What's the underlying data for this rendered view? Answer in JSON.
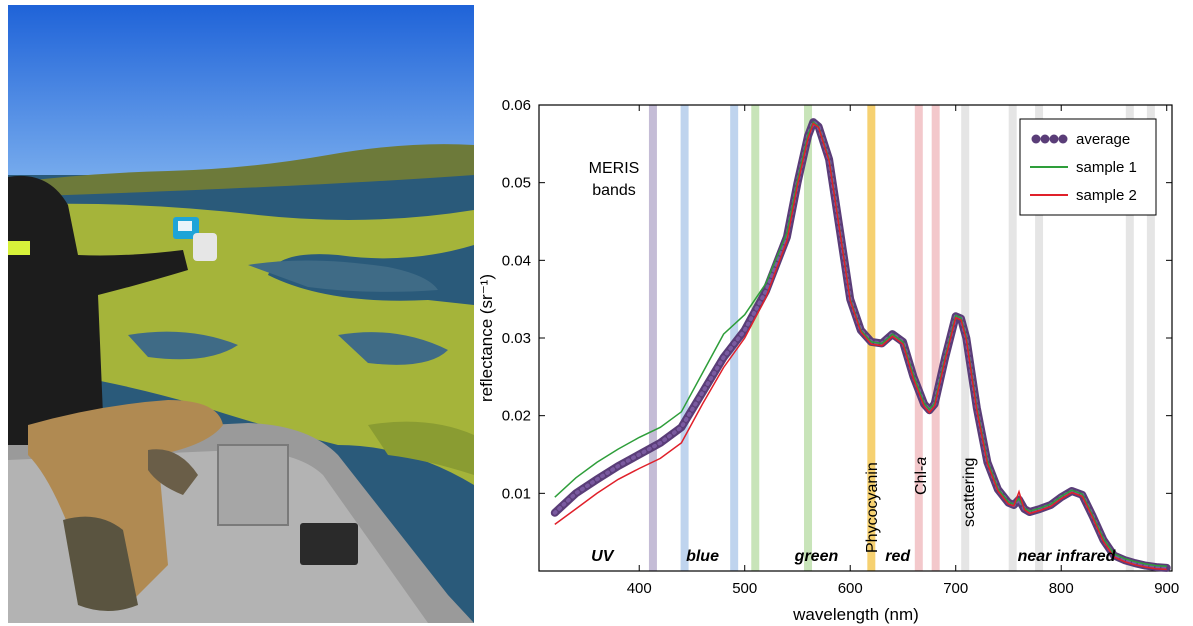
{
  "chart_data": {
    "type": "line",
    "xlabel": "wavelength (nm)",
    "ylabel": "reflectance (sr⁻¹)",
    "xlim": [
      305,
      905
    ],
    "ylim": [
      0,
      0.06
    ],
    "x_ticks": [
      400,
      500,
      600,
      700,
      800,
      900
    ],
    "y_ticks": [
      0.01,
      0.02,
      0.03,
      0.04,
      0.05,
      0.06
    ],
    "y_tick_labels": [
      "0.01",
      "0.02",
      "0.03",
      "0.04",
      "0.05",
      "0.06"
    ],
    "grid": false,
    "legend_position": "top-right",
    "series": [
      {
        "name": "average",
        "color": "#5a3d78",
        "style": "dotted-thick",
        "x": [
          320,
          340,
          360,
          380,
          400,
          420,
          440,
          460,
          480,
          500,
          520,
          540,
          550,
          560,
          565,
          570,
          580,
          590,
          600,
          610,
          620,
          630,
          640,
          650,
          660,
          670,
          675,
          680,
          690,
          700,
          705,
          710,
          720,
          730,
          740,
          750,
          755,
          760,
          765,
          770,
          780,
          790,
          800,
          810,
          820,
          830,
          840,
          850,
          860,
          870,
          880,
          890,
          900
        ],
        "y": [
          0.0075,
          0.01,
          0.0118,
          0.0135,
          0.015,
          0.0165,
          0.0185,
          0.023,
          0.0275,
          0.031,
          0.036,
          0.043,
          0.05,
          0.056,
          0.0578,
          0.0572,
          0.053,
          0.044,
          0.035,
          0.031,
          0.0295,
          0.0293,
          0.0305,
          0.0295,
          0.025,
          0.0215,
          0.0207,
          0.0215,
          0.0275,
          0.0328,
          0.0325,
          0.03,
          0.021,
          0.014,
          0.0105,
          0.0088,
          0.0085,
          0.0092,
          0.008,
          0.0076,
          0.008,
          0.0085,
          0.0095,
          0.0103,
          0.0098,
          0.007,
          0.004,
          0.002,
          0.0014,
          0.001,
          0.0007,
          0.0005,
          0.0004
        ]
      },
      {
        "name": "sample 1",
        "color": "#2e9e3a",
        "style": "line",
        "x": [
          320,
          340,
          360,
          380,
          400,
          420,
          440,
          460,
          480,
          500,
          520,
          540,
          550,
          560,
          565,
          570,
          580,
          590,
          600,
          610,
          620,
          630,
          640,
          650,
          660,
          670,
          675,
          680,
          690,
          700,
          705,
          710,
          720,
          730,
          740,
          750,
          755,
          760,
          765,
          770,
          780,
          790,
          800,
          810,
          820,
          830,
          840,
          850,
          860,
          870,
          880,
          890,
          900
        ],
        "y": [
          0.0095,
          0.012,
          0.014,
          0.0157,
          0.0172,
          0.0185,
          0.0205,
          0.0255,
          0.0305,
          0.033,
          0.037,
          0.0435,
          0.0503,
          0.0562,
          0.0578,
          0.0572,
          0.053,
          0.044,
          0.035,
          0.031,
          0.0295,
          0.0293,
          0.0305,
          0.0295,
          0.0252,
          0.0216,
          0.0208,
          0.0216,
          0.0276,
          0.0329,
          0.0326,
          0.0301,
          0.0211,
          0.0142,
          0.0106,
          0.0089,
          0.0086,
          0.0093,
          0.0081,
          0.0077,
          0.0081,
          0.0086,
          0.0096,
          0.0104,
          0.0099,
          0.0071,
          0.0042,
          0.0022,
          0.0016,
          0.0012,
          0.0009,
          0.0007,
          0.0006
        ]
      },
      {
        "name": "sample 2",
        "color": "#e0202a",
        "style": "line",
        "x": [
          320,
          340,
          360,
          380,
          400,
          420,
          440,
          460,
          480,
          500,
          520,
          540,
          550,
          560,
          565,
          570,
          580,
          590,
          600,
          610,
          620,
          630,
          640,
          650,
          660,
          670,
          675,
          680,
          690,
          700,
          705,
          710,
          720,
          730,
          740,
          750,
          755,
          760,
          765,
          770,
          780,
          790,
          800,
          810,
          820,
          830,
          840,
          850,
          860,
          870,
          880,
          890,
          900
        ],
        "y": [
          0.006,
          0.008,
          0.01,
          0.0118,
          0.0132,
          0.0145,
          0.0165,
          0.0215,
          0.0262,
          0.03,
          0.0352,
          0.0425,
          0.0497,
          0.0557,
          0.0576,
          0.0571,
          0.0528,
          0.0438,
          0.0348,
          0.0308,
          0.0292,
          0.029,
          0.0302,
          0.0292,
          0.0247,
          0.0212,
          0.0204,
          0.0212,
          0.0272,
          0.0326,
          0.0323,
          0.0298,
          0.0207,
          0.0138,
          0.0103,
          0.0086,
          0.0084,
          0.0102,
          0.0079,
          0.0074,
          0.0078,
          0.0083,
          0.0093,
          0.0101,
          0.0096,
          0.0068,
          0.0038,
          0.0018,
          0.0012,
          0.0008,
          0.0005,
          0.0003,
          0.0002
        ]
      }
    ],
    "meris_bands": [
      {
        "wl": 413,
        "color": "#b0a6c8"
      },
      {
        "wl": 443,
        "color": "#a9c6e8"
      },
      {
        "wl": 490,
        "color": "#a9c6e8"
      },
      {
        "wl": 510,
        "color": "#b5dba2"
      },
      {
        "wl": 560,
        "color": "#b5dba2"
      },
      {
        "wl": 620,
        "color": "#f3c242"
      },
      {
        "wl": 665,
        "color": "#efb6ba"
      },
      {
        "wl": 681,
        "color": "#efb6ba"
      },
      {
        "wl": 709,
        "color": "#dcdcdc"
      },
      {
        "wl": 754,
        "color": "#dcdcdc"
      },
      {
        "wl": 779,
        "color": "#dcdcdc"
      },
      {
        "wl": 865,
        "color": "#dcdcdc"
      },
      {
        "wl": 885,
        "color": "#dcdcdc"
      }
    ],
    "annotations": {
      "meris_line1": "MERIS",
      "meris_line2": "bands",
      "phycocyanin": "Phycocyanin",
      "chl_a_prefix": "Chl-",
      "chl_a_italic": "a",
      "scattering": "scattering"
    },
    "region_labels": [
      {
        "text": "UV",
        "wl": 365
      },
      {
        "text": "blue",
        "wl": 460
      },
      {
        "text": "green",
        "wl": 568
      },
      {
        "text": "red",
        "wl": 645
      },
      {
        "text": "near infrared",
        "wl": 805
      }
    ]
  }
}
